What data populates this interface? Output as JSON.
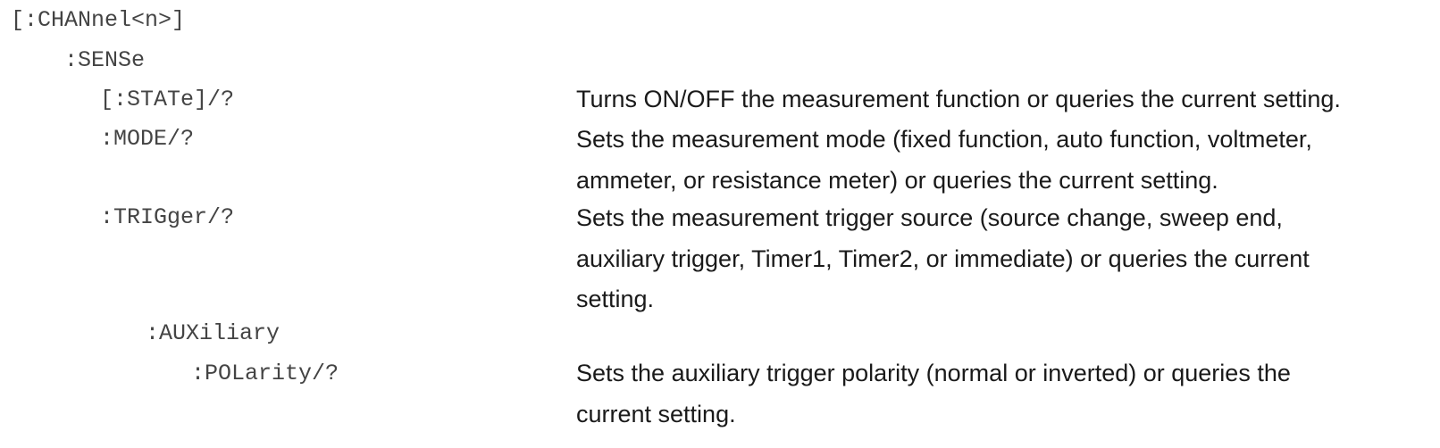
{
  "tree": {
    "channel": ":CHANnel<n>]",
    "channel_prefix": "[",
    "sense": ":SENSe",
    "state": {
      "command": "[:STATe]/?",
      "description": "Turns ON/OFF the measurement function or queries the current setting."
    },
    "mode": {
      "command": ":MODE/?",
      "description": "Sets the measurement mode (fixed function, auto function, voltmeter,\nammeter, or resistance meter) or queries the current setting."
    },
    "trigger": {
      "command": ":TRIGger/?",
      "description": "Sets the measurement trigger source (source change, sweep end,\nauxiliary trigger, Timer1, Timer2, or immediate) or queries the current\nsetting."
    },
    "auxiliary": ":AUXiliary",
    "polarity": {
      "command": ":POLarity/?",
      "description": "Sets the auxiliary trigger polarity (normal or inverted) or queries the\ncurrent setting."
    }
  }
}
